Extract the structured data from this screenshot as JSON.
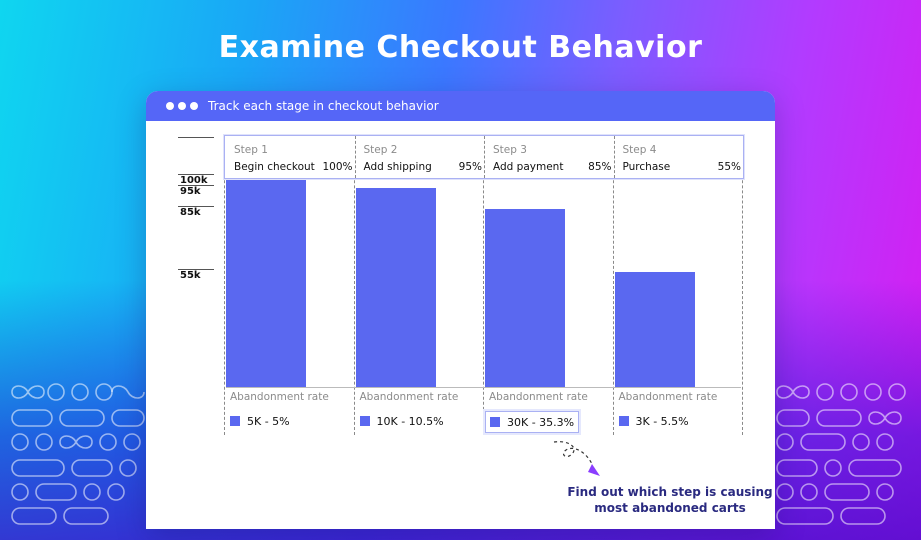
{
  "headline": "Examine Checkout Behavior",
  "window": {
    "title": "Track each stage in checkout behavior"
  },
  "yaxis": {
    "ticks": [
      "100k",
      "95k",
      "85k",
      "55k"
    ]
  },
  "chart_data": {
    "type": "bar",
    "categories": [
      "Begin checkout",
      "Add shipping",
      "Add payment",
      "Purchase"
    ],
    "step_names": [
      "Step 1",
      "Step 2",
      "Step 3",
      "Step 4"
    ],
    "percent_labels": [
      "100%",
      "95%",
      "85%",
      "55%"
    ],
    "values": [
      100,
      95,
      85,
      55
    ],
    "ylabel": "",
    "ylim": [
      0,
      100
    ],
    "abandonment_label": "Abandonment rate",
    "abandonment": [
      "5K - 5%",
      "10K - 10.5%",
      "30K - 35.3%",
      "3K - 5.5%"
    ],
    "highlighted_index": 2,
    "bar_color": "#5a68f0"
  },
  "annotation": {
    "text": "Find out which step is causing most abandoned carts"
  },
  "colors": {
    "accent": "#5566f7",
    "bar": "#5a68f0"
  }
}
